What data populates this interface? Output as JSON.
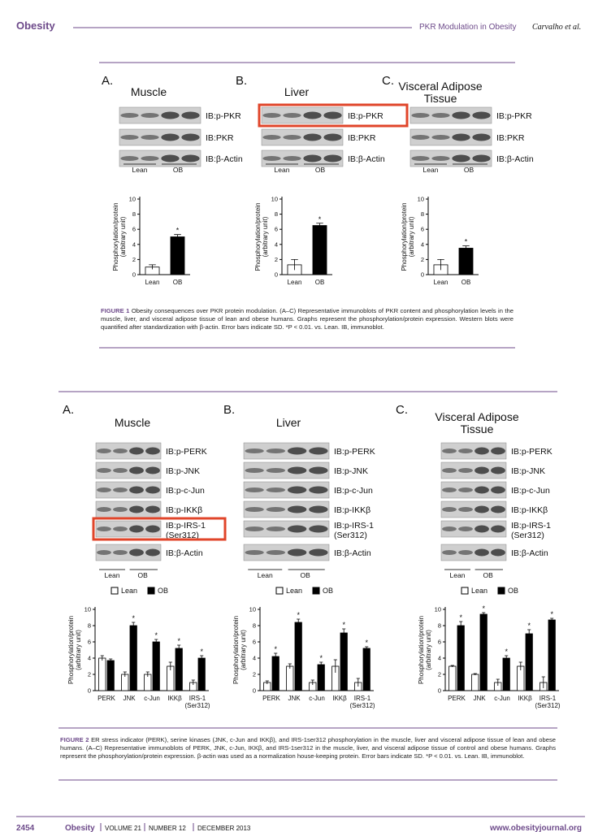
{
  "header": {
    "journal": "Obesity",
    "running_title": "PKR Modulation in Obesity",
    "authors": "Carvalho et al."
  },
  "figure1": {
    "panels": [
      {
        "letter": "A.",
        "title": [
          "Muscle"
        ],
        "blots": [
          "IB:p-PKR",
          "IB:PKR",
          "IB:β-Actin"
        ],
        "groups": [
          "Lean",
          "OB"
        ]
      },
      {
        "letter": "B.",
        "title": [
          "Liver"
        ],
        "blots": [
          "IB:p-PKR",
          "IB:PKR",
          "IB:β-Actin"
        ],
        "groups": [
          "Lean",
          "OB"
        ]
      },
      {
        "letter": "C.",
        "title": [
          "Visceral Adipose",
          "Tissue"
        ],
        "blots": [
          "IB:p-PKR",
          "IB:PKR",
          "IB:β-Actin"
        ],
        "groups": [
          "Lean",
          "OB"
        ]
      }
    ],
    "caption": {
      "label": "FIGURE 1",
      "text": "Obesity consequences over PKR protein modulation. (A–C) Representative immunoblots of PKR content and phosphorylation levels in the muscle, liver, and visceral adipose tissue of lean and obese humans. Graphs represent the phosphorylation/protein expression. Western blots were quantified after standardization with β-actin. Error bars indicate SD. *P < 0.01. vs. Lean. IB, immunoblot."
    }
  },
  "figure2": {
    "panels": [
      {
        "letter": "A.",
        "title": [
          "Muscle"
        ],
        "blots": [
          "IB:p-PERK",
          "IB:p-JNK",
          "IB:p-c-Jun",
          "IB:p-IKKβ",
          "IB:p-IRS-1 (Ser312)",
          "IB:β-Actin"
        ],
        "groups": [
          "Lean",
          "OB"
        ]
      },
      {
        "letter": "B.",
        "title": [
          "Liver"
        ],
        "blots": [
          "IB:p-PERK",
          "IB:p-JNK",
          "IB:p-c-Jun",
          "IB:p-IKKβ",
          "IB:p-IRS-1 (Ser312)",
          "IB:β-Actin"
        ],
        "groups": [
          "Lean",
          "OB"
        ]
      },
      {
        "letter": "C.",
        "title": [
          "Visceral Adipose",
          "Tissue"
        ],
        "blots": [
          "IB:p-PERK",
          "IB:p-JNK",
          "IB:p-c-Jun",
          "IB:p-IKKβ",
          "IB:p-IRS-1 (Ser312)",
          "IB:β-Actin"
        ],
        "groups": [
          "Lean",
          "OB"
        ]
      }
    ],
    "caption": {
      "label": "FIGURE 2",
      "text": "ER stress indicator (PERK), serine kinases (JNK, c-Jun and IKKβ), and IRS-1ser312 phosphorylation in the muscle, liver and visceral adipose tissue of lean and obese humans. (A–C) Representative immunoblots of PERK, JNK, c-Jun, IKKβ, and IRS-1ser312 in the muscle, liver, and visceral adipose tissue of control and obese humans. Graphs represent the phosphorylation/protein expression. β-actin was used as a normalization house-keeping protein. Error bars indicate SD. *P < 0.01. vs. Lean. IB, immunoblot."
    }
  },
  "chart_data": [
    {
      "type": "bar",
      "ylabel": [
        "Phosphorylation/protein",
        "(arbitrary unit)"
      ],
      "categories": [
        "Lean",
        "OB"
      ],
      "values": [
        1,
        5
      ],
      "errors": [
        0.3,
        0.3
      ],
      "colors": [
        "#ffffff",
        "#000000"
      ],
      "significance": [
        null,
        "*"
      ],
      "ylim": [
        0,
        10
      ],
      "yticks": [
        0,
        2,
        4,
        6,
        8,
        10
      ]
    },
    {
      "type": "bar",
      "ylabel": [
        "Phosphorylation/protein",
        "(arbitrary unit)"
      ],
      "categories": [
        "Lean",
        "OB"
      ],
      "values": [
        1.3,
        6.5
      ],
      "errors": [
        0.7,
        0.3
      ],
      "colors": [
        "#ffffff",
        "#000000"
      ],
      "significance": [
        null,
        "*"
      ],
      "ylim": [
        0,
        10
      ],
      "yticks": [
        0,
        2,
        4,
        6,
        8,
        10
      ]
    },
    {
      "type": "bar",
      "ylabel": [
        "Phosphorylation/protein",
        "(arbitrary unit)"
      ],
      "categories": [
        "Lean",
        "OB"
      ],
      "values": [
        1.3,
        3.5
      ],
      "errors": [
        0.7,
        0.3
      ],
      "colors": [
        "#ffffff",
        "#000000"
      ],
      "significance": [
        null,
        "*"
      ],
      "ylim": [
        0,
        10
      ],
      "yticks": [
        0,
        2,
        4,
        6,
        8,
        10
      ]
    },
    {
      "type": "bar",
      "ylabel": [
        "Phosphorylation/protein",
        "(arbitrary unit)"
      ],
      "categories": [
        "PERK",
        "JNK",
        "c-Jun",
        "IKKβ",
        "IRS-1 (Ser312)"
      ],
      "series": [
        {
          "name": "Lean",
          "color": "#ffffff",
          "values": [
            4,
            2,
            2,
            3,
            1
          ],
          "errors": [
            0.3,
            0.3,
            0.3,
            0.5,
            0.3
          ]
        },
        {
          "name": "OB",
          "color": "#000000",
          "values": [
            3.7,
            8,
            6,
            5.2,
            4
          ],
          "errors": [
            0.2,
            0.4,
            0.3,
            0.4,
            0.3
          ],
          "significance": [
            null,
            "*",
            "*",
            "*",
            "*"
          ]
        }
      ],
      "ylim": [
        0,
        10
      ],
      "yticks": [
        0,
        2,
        4,
        6,
        8,
        10
      ]
    },
    {
      "type": "bar",
      "ylabel": [
        "Phosphorylation/protein",
        "(arbitrary unit)"
      ],
      "categories": [
        "PERK",
        "JNK",
        "c-Jun",
        "IKKβ",
        "IRS-1 (Ser312)"
      ],
      "series": [
        {
          "name": "Lean",
          "color": "#ffffff",
          "values": [
            1,
            3,
            1,
            3,
            1
          ],
          "errors": [
            0.2,
            0.3,
            0.3,
            0.8,
            0.5
          ]
        },
        {
          "name": "OB",
          "color": "#000000",
          "values": [
            4.2,
            8.4,
            3.2,
            7.1,
            5.2
          ],
          "errors": [
            0.4,
            0.4,
            0.3,
            0.5,
            0.2
          ],
          "significance": [
            "*",
            "*",
            "*",
            "*",
            "*"
          ]
        }
      ],
      "ylim": [
        0,
        10
      ],
      "yticks": [
        0,
        2,
        4,
        6,
        8,
        10
      ]
    },
    {
      "type": "bar",
      "ylabel": [
        "Phosphorylation/protein",
        "(arbitrary unit)"
      ],
      "categories": [
        "PERK",
        "JNK",
        "c-Jun",
        "IKKβ",
        "IRS-1 (Ser312)"
      ],
      "series": [
        {
          "name": "Lean",
          "color": "#ffffff",
          "values": [
            3,
            2,
            1,
            3,
            1
          ],
          "errors": [
            0.1,
            0.1,
            0.4,
            0.5,
            0.7
          ]
        },
        {
          "name": "OB",
          "color": "#000000",
          "values": [
            8,
            9.4,
            4,
            7,
            8.7
          ],
          "errors": [
            0.5,
            0.2,
            0.3,
            0.5,
            0.2
          ],
          "significance": [
            "*",
            "*",
            "*",
            "*",
            "*"
          ]
        }
      ],
      "ylim": [
        0,
        10
      ],
      "yticks": [
        0,
        2,
        4,
        6,
        8,
        10
      ]
    }
  ],
  "footer": {
    "page": "2454",
    "journal": "Obesity",
    "volume": "VOLUME 21",
    "issue": "NUMBER 12",
    "date": "DECEMBER 2013",
    "url": "www.obesityjournal.org"
  }
}
